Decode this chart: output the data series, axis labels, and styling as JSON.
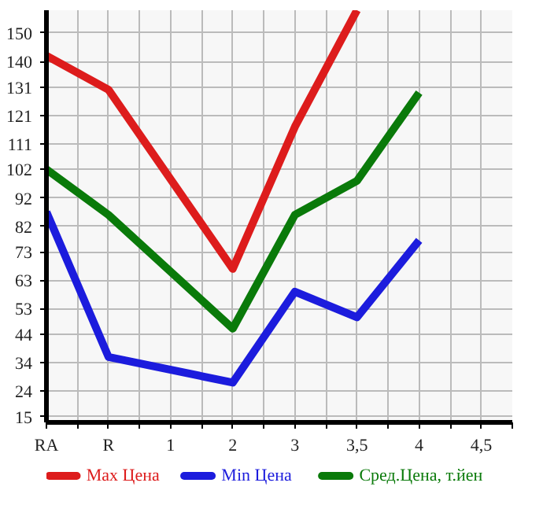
{
  "chart_data": {
    "type": "line",
    "categories": [
      "RA",
      "R",
      "1",
      "2",
      "3",
      "3,5",
      "4",
      "4,5"
    ],
    "ylim": [
      13,
      158
    ],
    "yticks": [
      15,
      24,
      34,
      44,
      53,
      63,
      73,
      82,
      92,
      102,
      111,
      121,
      131,
      140,
      150
    ],
    "series": [
      {
        "name": "Max Цена",
        "color": "#dd1c1c",
        "values": [
          142,
          130,
          null,
          67,
          117,
          158,
          null,
          null
        ]
      },
      {
        "name": "Min Цена",
        "color": "#1c1cdd",
        "values": [
          87,
          36,
          null,
          27,
          59,
          50,
          77,
          null
        ]
      },
      {
        "name": "Сред.Цена, т.йен",
        "color": "#0a7a0a",
        "values": [
          102,
          86,
          null,
          46,
          86,
          98,
          129,
          null
        ]
      }
    ],
    "grid": true,
    "legend": "bottom",
    "line_style": "solid",
    "marker": "none"
  }
}
